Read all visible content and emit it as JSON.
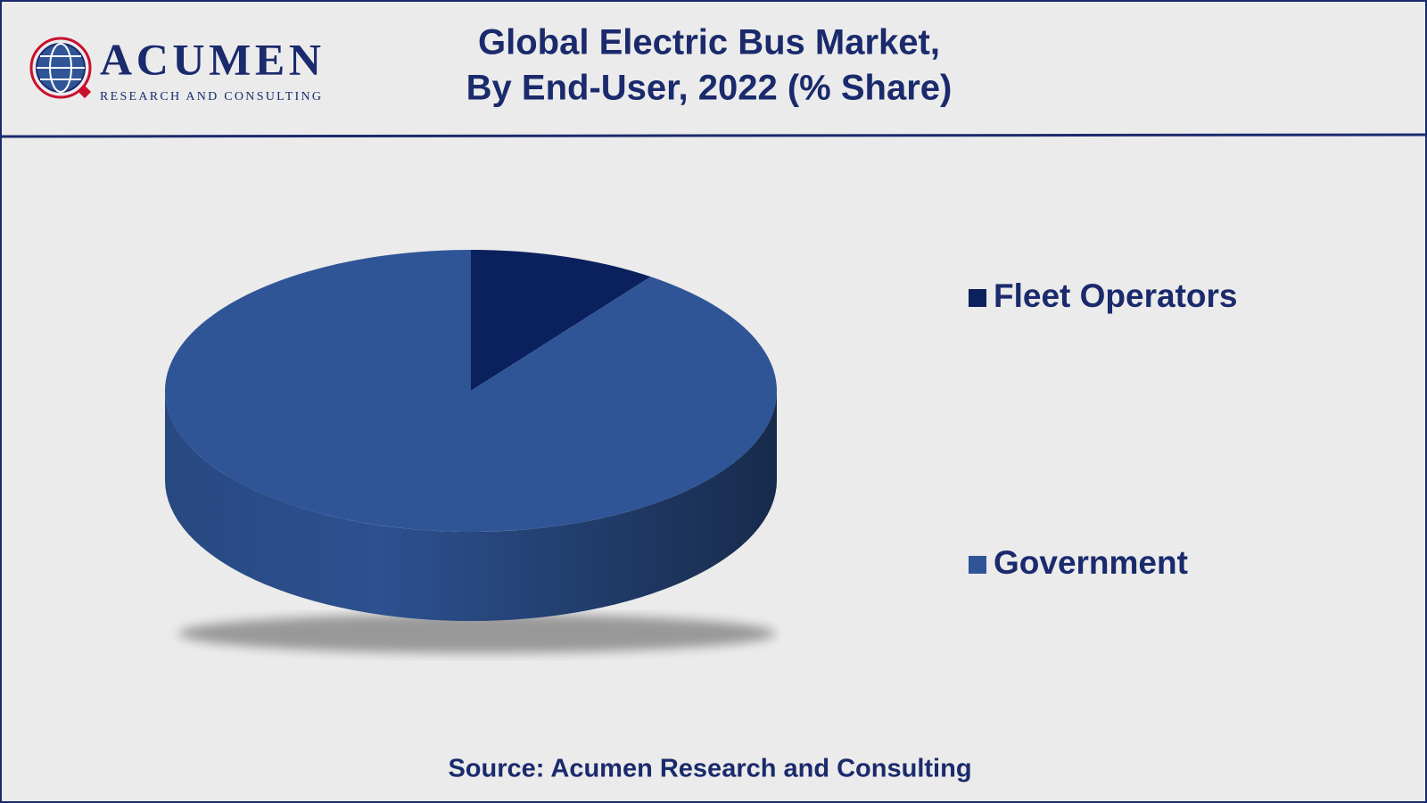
{
  "logo": {
    "name": "ACUMEN",
    "tagline": "RESEARCH AND CONSULTING"
  },
  "chart_data": {
    "type": "pie",
    "title": [
      "Global Electric Bus Market,",
      "By End-User, 2022 (% Share)"
    ],
    "categories": [
      "Fleet Operators",
      "Government"
    ],
    "values": [
      10,
      90
    ],
    "colors": [
      "#0b215e",
      "#2f5597"
    ],
    "legend": "right",
    "source": "Source: Acumen Research and Consulting"
  }
}
